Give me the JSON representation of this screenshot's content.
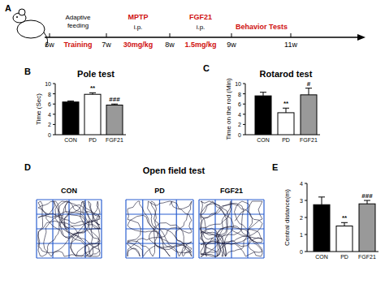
{
  "panel_labels": [
    "A",
    "B",
    "C",
    "D",
    "E"
  ],
  "timeline": {
    "weeks": [
      "6w",
      "7w",
      "8w",
      "9w",
      "11w"
    ],
    "adaptive_feeding": [
      "Adaptive",
      "feeding"
    ],
    "training": "Training",
    "mptp": {
      "name": "MPTP",
      "route": "i.p.",
      "dose": "30mg/kg"
    },
    "fgf21": {
      "name": "FGF21",
      "route": "i.p.",
      "dose": "1.5mg/kg"
    },
    "behavior": "Behavior Tests"
  },
  "open_field": {
    "title": "Open field test",
    "groups": [
      "CON",
      "PD",
      "FGF21"
    ]
  },
  "chart_data": [
    {
      "type": "bar",
      "title": "Pole test",
      "y_label": "Time (Sec)",
      "categories": [
        "CON",
        "PD",
        "FGF21"
      ],
      "values": [
        6.4,
        7.9,
        5.8
      ],
      "errors": [
        0.2,
        0.3,
        0.2
      ],
      "colors": [
        "#000000",
        "#ffffff",
        "#999999"
      ],
      "ylim": [
        0,
        10
      ],
      "yticks": [
        0,
        2,
        4,
        6,
        8,
        10
      ],
      "annotations": [
        {
          "x": "PD",
          "text": "**"
        },
        {
          "x": "FGF21",
          "text": "###"
        }
      ]
    },
    {
      "type": "bar",
      "title": "Rotarod test",
      "y_label": "Time on the rod (Min)",
      "categories": [
        "CON",
        "PD",
        "FGF21"
      ],
      "values": [
        7.6,
        4.3,
        7.8
      ],
      "errors": [
        0.7,
        0.9,
        1.3
      ],
      "colors": [
        "#000000",
        "#ffffff",
        "#999999"
      ],
      "ylim": [
        0,
        10
      ],
      "yticks": [
        0,
        2,
        4,
        6,
        8,
        10
      ],
      "annotations": [
        {
          "x": "PD",
          "text": "**"
        },
        {
          "x": "FGF21",
          "text": "#"
        }
      ]
    },
    {
      "type": "bar",
      "y_label": "Central distance(m)",
      "categories": [
        "CON",
        "PD",
        "FGF21"
      ],
      "values": [
        2.75,
        1.5,
        2.8
      ],
      "errors": [
        0.45,
        0.2,
        0.2
      ],
      "colors": [
        "#000000",
        "#ffffff",
        "#999999"
      ],
      "ylim": [
        0,
        4
      ],
      "yticks": [
        0,
        1,
        2,
        3,
        4
      ],
      "annotations": [
        {
          "x": "PD",
          "text": "**"
        },
        {
          "x": "FGF21",
          "text": "###"
        }
      ]
    }
  ]
}
